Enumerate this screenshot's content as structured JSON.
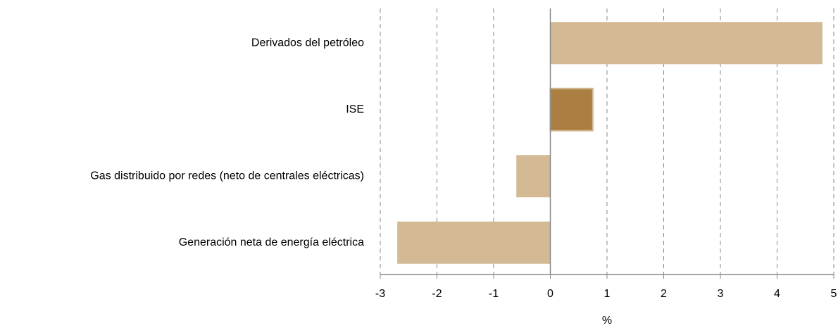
{
  "chart_data": {
    "type": "bar",
    "orientation": "horizontal",
    "categories": [
      "Derivados del petróleo",
      "ISE",
      "Gas distribuido por redes (neto de centrales eléctricas)",
      "Generación neta de energía eléctrica"
    ],
    "values": [
      4.8,
      0.75,
      -0.6,
      -2.7
    ],
    "colors": [
      "#d3b994",
      "#ab7e42",
      "#d3b994",
      "#d3b994"
    ],
    "xlabel": "%",
    "xlim": [
      -3,
      5
    ],
    "xticks": [
      -3,
      -2,
      -1,
      0,
      1,
      2,
      3,
      4,
      5
    ],
    "grid": true
  }
}
